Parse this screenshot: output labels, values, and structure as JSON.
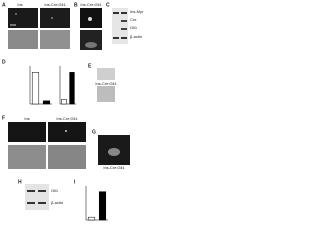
{
  "panels": [
    {
      "letter": "A",
      "labels": [
        "Ins",
        "Ins-Cre;Gli1"
      ]
    },
    {
      "letter": "B",
      "labels": [
        "Ins-Cre;Gli1"
      ]
    },
    {
      "letter": "C",
      "labels": [
        "Ins-Myr",
        "Cre",
        "Gli1",
        "β-actin"
      ]
    },
    {
      "letter": "D"
    },
    {
      "letter": "E",
      "labels": [
        "Ins-Cre;Gli1"
      ]
    },
    {
      "letter": "F",
      "labels": [
        "Ins",
        "Ins-Cre;Gli1"
      ]
    },
    {
      "letter": "G",
      "labels": [
        "Ins-Cre;Gli1"
      ]
    },
    {
      "letter": "H",
      "labels": [
        "Gli1",
        "β-actin"
      ]
    },
    {
      "letter": "I"
    }
  ],
  "charts": [
    {
      "values": [
        1,
        0.1
      ],
      "colors": [
        "#ffffff",
        "#000000"
      ],
      "ylim": [
        0,
        1.2
      ]
    },
    {
      "values": [
        0.15,
        1
      ],
      "colors": [
        "#ffffff",
        "#000000"
      ],
      "ylim": [
        0,
        1.2
      ]
    },
    {
      "values": [
        0.1,
        1
      ],
      "colors": [
        "#ffffff",
        "#000000"
      ],
      "ylim": [
        0,
        1.2
      ]
    }
  ]
}
